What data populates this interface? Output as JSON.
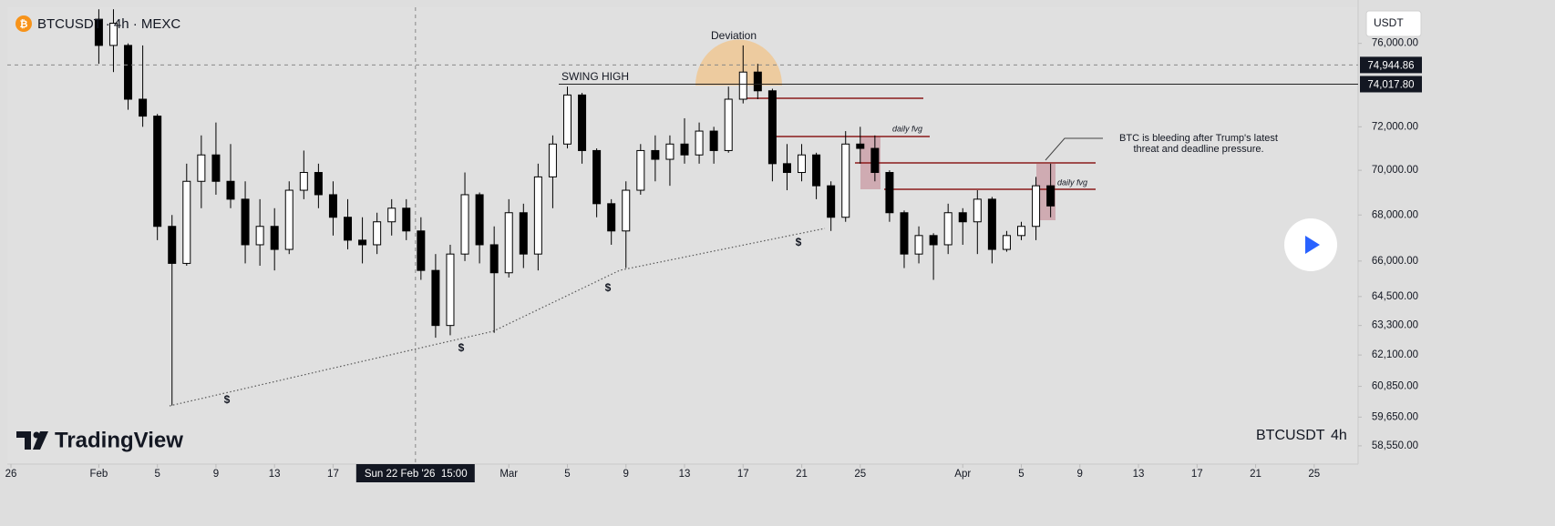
{
  "header": {
    "symbol": "BTCUSDT · 4h · MEXC",
    "currency": "USDT"
  },
  "chart_data": {
    "type": "candlestick",
    "log_scale": true,
    "up_color": "#ffffff",
    "down_color": "#000000",
    "x": [
      "2026-02-01",
      "2026-02-02",
      "2026-02-03",
      "2026-02-04",
      "2026-02-05",
      "2026-02-06",
      "2026-02-07",
      "2026-02-08",
      "2026-02-09",
      "2026-02-10",
      "2026-02-11",
      "2026-02-12",
      "2026-02-13",
      "2026-02-14",
      "2026-02-15",
      "2026-02-16",
      "2026-02-17",
      "2026-02-18",
      "2026-02-19",
      "2026-02-20",
      "2026-02-21",
      "2026-02-22",
      "2026-02-23",
      "2026-02-24",
      "2026-02-25",
      "2026-02-26",
      "2026-02-27",
      "2026-02-28",
      "2026-03-01",
      "2026-03-02",
      "2026-03-03",
      "2026-03-04",
      "2026-03-05",
      "2026-03-06",
      "2026-03-07",
      "2026-03-08",
      "2026-03-09",
      "2026-03-10",
      "2026-03-11",
      "2026-03-12",
      "2026-03-13",
      "2026-03-14",
      "2026-03-15",
      "2026-03-16",
      "2026-03-17",
      "2026-03-18",
      "2026-03-19",
      "2026-03-20",
      "2026-03-21",
      "2026-03-22",
      "2026-03-23",
      "2026-03-24",
      "2026-03-25",
      "2026-03-26",
      "2026-03-27",
      "2026-03-28",
      "2026-03-29",
      "2026-03-30",
      "2026-03-31",
      "2026-04-01",
      "2026-04-02",
      "2026-04-03",
      "2026-04-04",
      "2026-04-05",
      "2026-04-06",
      "2026-04-07"
    ],
    "open": [
      77200,
      75900,
      75900,
      73300,
      72500,
      67500,
      65900,
      69500,
      70700,
      69500,
      68700,
      66700,
      67500,
      66500,
      69100,
      69900,
      68900,
      67900,
      66900,
      66700,
      67700,
      68300,
      67300,
      65600,
      63300,
      66300,
      68900,
      66700,
      65500,
      68100,
      66300,
      69700,
      71200,
      73500,
      70900,
      68500,
      67300,
      69100,
      70900,
      70500,
      71200,
      70700,
      71800,
      70900,
      73300,
      74600,
      73700,
      70300,
      69900,
      70700,
      69300,
      67900,
      71200,
      71000,
      69900,
      68100,
      66300,
      67100,
      66700,
      68100,
      67700,
      68700,
      66500,
      67100,
      67500,
      69300
    ],
    "high": [
      77700,
      77700,
      76000,
      75900,
      72600,
      68000,
      70300,
      71600,
      72200,
      71200,
      69500,
      68700,
      68300,
      69500,
      70900,
      70300,
      69500,
      68700,
      67900,
      68100,
      68700,
      68700,
      67900,
      66300,
      66700,
      69900,
      69000,
      67500,
      68700,
      68500,
      70300,
      71600,
      73900,
      73600,
      71000,
      68700,
      69500,
      71200,
      71600,
      71600,
      72400,
      72200,
      72000,
      73900,
      75900,
      75000,
      73800,
      71200,
      71200,
      70800,
      69500,
      71800,
      72000,
      71600,
      70000,
      68200,
      67500,
      67200,
      68500,
      68300,
      69100,
      68800,
      67300,
      67700,
      69700,
      70300
    ],
    "low": [
      75000,
      74600,
      72800,
      72000,
      66900,
      60100,
      65800,
      68300,
      68900,
      68300,
      65900,
      65800,
      65600,
      66300,
      68700,
      68300,
      67100,
      66500,
      65900,
      66300,
      67100,
      66900,
      65200,
      62800,
      62900,
      66000,
      65900,
      63000,
      65300,
      65700,
      65600,
      68300,
      71000,
      70300,
      67900,
      66700,
      65700,
      68900,
      69500,
      69300,
      70300,
      70300,
      70300,
      70800,
      73100,
      73300,
      69500,
      69100,
      69500,
      68700,
      67300,
      67700,
      70300,
      69500,
      67700,
      65700,
      65900,
      65200,
      66300,
      66700,
      66300,
      65900,
      66400,
      66900,
      66900,
      67900
    ],
    "close": [
      75900,
      77000,
      73300,
      72500,
      67500,
      65900,
      69500,
      70700,
      69500,
      68700,
      66700,
      67500,
      66500,
      69100,
      69900,
      68900,
      67900,
      66900,
      66700,
      67700,
      68300,
      67300,
      65600,
      63300,
      66300,
      68900,
      66700,
      65500,
      68100,
      66300,
      69700,
      71200,
      73500,
      70900,
      68500,
      67300,
      69100,
      70900,
      70500,
      71200,
      70700,
      71800,
      70900,
      73300,
      74600,
      73700,
      70300,
      69900,
      70700,
      69300,
      67900,
      71200,
      71000,
      69900,
      68100,
      66300,
      67100,
      66700,
      68100,
      67700,
      68700,
      66500,
      67100,
      67500,
      69300,
      68400
    ],
    "ylim": [
      57860,
      77800
    ],
    "yticks": [
      {
        "value": 76000,
        "label": "76,000.00"
      },
      {
        "value": 72000,
        "label": "72,000.00"
      },
      {
        "value": 70000,
        "label": "70,000.00"
      },
      {
        "value": 68000,
        "label": "68,000.00"
      },
      {
        "value": 66000,
        "label": "66,000.00"
      },
      {
        "value": 64500,
        "label": "64,500.00"
      },
      {
        "value": 63300,
        "label": "63,300.00"
      },
      {
        "value": 62100,
        "label": "62,100.00"
      },
      {
        "value": 60850,
        "label": "60,850.00"
      },
      {
        "value": 59650,
        "label": "59,650.00"
      },
      {
        "value": 58550,
        "label": "58,550.00"
      }
    ],
    "xlim": [
      "2026-01-25T18:00",
      "2026-04-28T00:00"
    ],
    "xticks": [
      {
        "value": "2026-01-26",
        "label": "26"
      },
      {
        "value": "2026-02-01",
        "label": "Feb"
      },
      {
        "value": "2026-02-05",
        "label": "5"
      },
      {
        "value": "2026-02-09",
        "label": "9"
      },
      {
        "value": "2026-02-13",
        "label": "13"
      },
      {
        "value": "2026-02-17",
        "label": "17"
      },
      {
        "value": "2026-03-01",
        "label": "Mar"
      },
      {
        "value": "2026-03-05",
        "label": "5"
      },
      {
        "value": "2026-03-09",
        "label": "9"
      },
      {
        "value": "2026-03-13",
        "label": "13"
      },
      {
        "value": "2026-03-17",
        "label": "17"
      },
      {
        "value": "2026-03-21",
        "label": "21"
      },
      {
        "value": "2026-03-25",
        "label": "25"
      },
      {
        "value": "2026-04-01",
        "label": "Apr"
      },
      {
        "value": "2026-04-05",
        "label": "5"
      },
      {
        "value": "2026-04-09",
        "label": "9"
      },
      {
        "value": "2026-04-13",
        "label": "13"
      },
      {
        "value": "2026-04-17",
        "label": "17"
      },
      {
        "value": "2026-04-21",
        "label": "21"
      },
      {
        "value": "2026-04-25",
        "label": "25"
      }
    ],
    "price_labels": [
      {
        "value": 74944.86,
        "label": "74,944.86"
      },
      {
        "value": 74017.8,
        "label": "74,017.80"
      }
    ],
    "crosshair": {
      "x": "2026-02-22T15:00",
      "date_label": "Sun 22 Feb '26",
      "time_label": "15:00"
    },
    "annotations": [
      "Deviation",
      "SWING HIGH",
      "daily fvg",
      "daily fvg",
      "BTC is bleeding after Trump's latest",
      "threat and deadline pressure.",
      "$",
      "$",
      "$",
      "$"
    ]
  },
  "watermark": {
    "logo": "TradingView",
    "symbol": "BTCUSDT",
    "interval": "4h"
  }
}
